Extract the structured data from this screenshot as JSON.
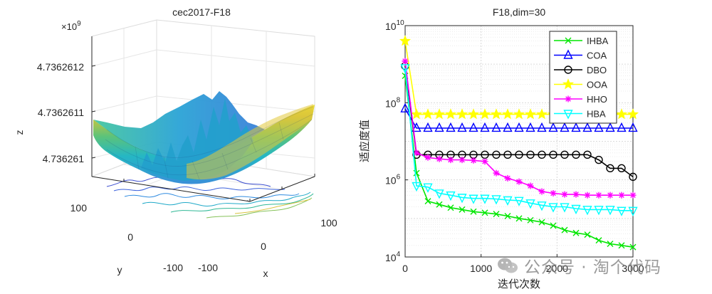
{
  "left_chart": {
    "title": "cec2017-F18",
    "exponent_label": "×10",
    "exponent_power": "9",
    "z_axis_label": "z",
    "x_axis_label": "x",
    "y_axis_label": "y",
    "z_ticks": [
      "4.736261",
      "4.7362611",
      "4.7362612"
    ],
    "x_ticks": [
      "-100",
      "0",
      "100"
    ],
    "y_ticks": [
      "-100",
      "0",
      "100"
    ]
  },
  "watermark": {
    "text": "公众号 · 淘个代码",
    "icon": "wechat-icon"
  },
  "chart_data": [
    {
      "type": "surface",
      "title": "cec2017-F18",
      "xlabel": "x",
      "ylabel": "y",
      "zlabel": "z",
      "xlim": [
        -100,
        100
      ],
      "ylim": [
        -100,
        100
      ],
      "zlim": [
        4.73626095,
        4.73626125
      ],
      "z_scale_exponent": 9,
      "contour_projection": true,
      "colormap": "parula"
    },
    {
      "type": "line",
      "title": "F18,dim=30",
      "xlabel": "迭代次数",
      "ylabel": "适应度值",
      "x_ticks": [
        "0",
        "1000",
        "2000",
        "3000"
      ],
      "y_ticks": [
        "10",
        "10",
        "10",
        "10"
      ],
      "y_tick_powers": [
        "4",
        "6",
        "8",
        "10"
      ],
      "xlim": [
        0,
        3000
      ],
      "ylim": [
        10000,
        10000000000
      ],
      "yscale": "log",
      "grid": true,
      "legend_position": "top-right",
      "x": [
        0,
        150,
        300,
        450,
        600,
        750,
        900,
        1050,
        1200,
        1350,
        1500,
        1650,
        1800,
        1950,
        2100,
        2250,
        2400,
        2550,
        2700,
        2850,
        3000
      ],
      "series": [
        {
          "name": "IHBA",
          "color": "#00e600",
          "marker": "x",
          "values": [
            500000000,
            1500000,
            280000,
            230000,
            190000,
            170000,
            150000,
            140000,
            130000,
            115000,
            100000,
            90000,
            80000,
            65000,
            50000,
            42000,
            38000,
            27000,
            22000,
            20000,
            18000
          ]
        },
        {
          "name": "COA",
          "color": "#0000ff",
          "marker": "triangle",
          "values": [
            70000000,
            22000000,
            22000000,
            22000000,
            22000000,
            22000000,
            22000000,
            22000000,
            22000000,
            22000000,
            22000000,
            22000000,
            22000000,
            22000000,
            22000000,
            22000000,
            22000000,
            22000000,
            22000000,
            22000000,
            22000000
          ]
        },
        {
          "name": "DBO",
          "color": "#000000",
          "marker": "circle",
          "values": [
            900000000,
            4500000,
            4500000,
            4500000,
            4500000,
            4500000,
            4500000,
            4500000,
            4500000,
            4500000,
            4500000,
            4500000,
            4500000,
            4500000,
            4500000,
            4500000,
            4500000,
            3300000,
            2000000,
            2000000,
            1200000
          ]
        },
        {
          "name": "OOA",
          "color": "#ffff00",
          "marker": "star",
          "values": [
            4000000000,
            50000000,
            50000000,
            50000000,
            50000000,
            50000000,
            50000000,
            50000000,
            50000000,
            50000000,
            50000000,
            50000000,
            50000000,
            50000000,
            50000000,
            50000000,
            50000000,
            50000000,
            50000000,
            50000000,
            50000000
          ]
        },
        {
          "name": "HHO",
          "color": "#ff00ff",
          "marker": "asterisk",
          "values": [
            1200000000,
            5000000,
            3800000,
            3500000,
            3300000,
            3300000,
            3200000,
            3000000,
            1500000,
            1100000,
            900000,
            700000,
            500000,
            450000,
            420000,
            420000,
            400000,
            400000,
            400000,
            400000,
            400000
          ]
        },
        {
          "name": "HBA",
          "color": "#00ffff",
          "marker": "triangle-down",
          "values": [
            800000000,
            700000,
            650000,
            450000,
            400000,
            350000,
            330000,
            330000,
            320000,
            300000,
            290000,
            250000,
            220000,
            200000,
            200000,
            180000,
            170000,
            170000,
            170000,
            160000,
            160000
          ]
        }
      ]
    }
  ]
}
